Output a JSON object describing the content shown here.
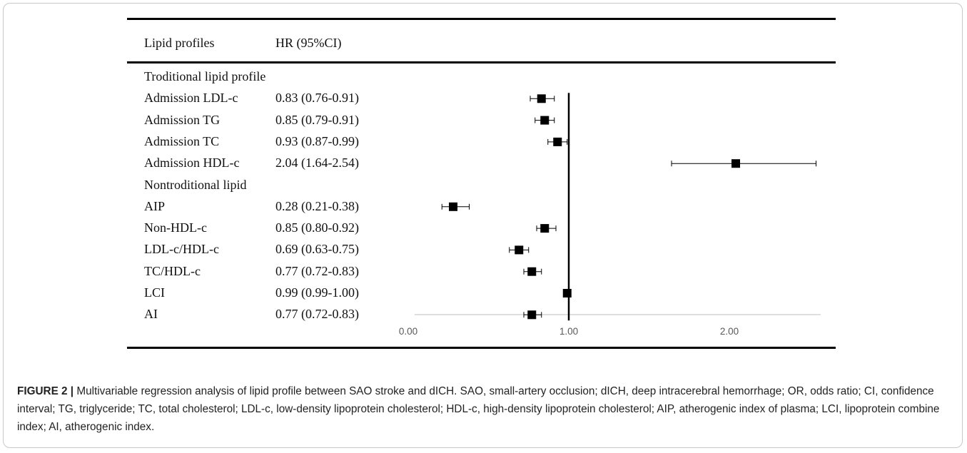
{
  "table": {
    "header_label": "Lipid profiles",
    "header_hr": "HR (95%CI)",
    "rows": [
      {
        "label": "Troditional lipid profile",
        "hr": ""
      },
      {
        "label": "Admission LDL-c",
        "hr": "0.83 (0.76-0.91)"
      },
      {
        "label": "Admission TG",
        "hr": "0.85 (0.79-0.91)"
      },
      {
        "label": "Admission TC",
        "hr": "0.93 (0.87-0.99)"
      },
      {
        "label": "Admission HDL-c",
        "hr": "2.04 (1.64-2.54)"
      },
      {
        "label": "Nontroditional lipid",
        "hr": ""
      },
      {
        "label": "AIP",
        "hr": "0.28 (0.21-0.38)"
      },
      {
        "label": "Non-HDL-c",
        "hr": "0.85 (0.80-0.92)"
      },
      {
        "label": "LDL-c/HDL-c",
        "hr": "0.69 (0.63-0.75)"
      },
      {
        "label": "TC/HDL-c",
        "hr": "0.77 (0.72-0.83)"
      },
      {
        "label": "LCI",
        "hr": "0.99 (0.99-1.00)"
      },
      {
        "label": "AI",
        "hr": "0.77 (0.72-0.83)"
      }
    ]
  },
  "chart_data": {
    "type": "scatter",
    "xlim": [
      0,
      2.6
    ],
    "reference_line": 1.0,
    "x_ticks": [
      "0.00",
      "1.00",
      "2.00"
    ],
    "points": [
      {
        "category": "Admission LDL-c",
        "hr": 0.83,
        "lo": 0.76,
        "hi": 0.91
      },
      {
        "category": "Admission TG",
        "hr": 0.85,
        "lo": 0.79,
        "hi": 0.91
      },
      {
        "category": "Admission TC",
        "hr": 0.93,
        "lo": 0.87,
        "hi": 0.99
      },
      {
        "category": "Admission HDL-c",
        "hr": 2.04,
        "lo": 1.64,
        "hi": 2.54
      },
      {
        "category": "AIP",
        "hr": 0.28,
        "lo": 0.21,
        "hi": 0.38
      },
      {
        "category": "Non-HDL-c",
        "hr": 0.85,
        "lo": 0.8,
        "hi": 0.92
      },
      {
        "category": "LDL-c/HDL-c",
        "hr": 0.69,
        "lo": 0.63,
        "hi": 0.75
      },
      {
        "category": "TC/HDL-c",
        "hr": 0.77,
        "lo": 0.72,
        "hi": 0.83
      },
      {
        "category": "LCI",
        "hr": 0.99,
        "lo": 0.99,
        "hi": 1.0
      },
      {
        "category": "AI",
        "hr": 0.77,
        "lo": 0.72,
        "hi": 0.83
      }
    ]
  },
  "caption": {
    "figure_label": "FIGURE 2 |",
    "text": " Multivariable regression analysis of lipid profile between SAO stroke and dICH. SAO, small-artery occlusion; dICH, deep intracerebral hemorrhage; OR, odds ratio; CI, confidence interval; TG, triglyceride; TC, total cholesterol; LDL-c, low-density lipoprotein cholesterol; HDL-c, high-density lipoprotein cholesterol; AIP, atherogenic index of plasma; LCI, lipoprotein combine index; AI, atherogenic index."
  }
}
